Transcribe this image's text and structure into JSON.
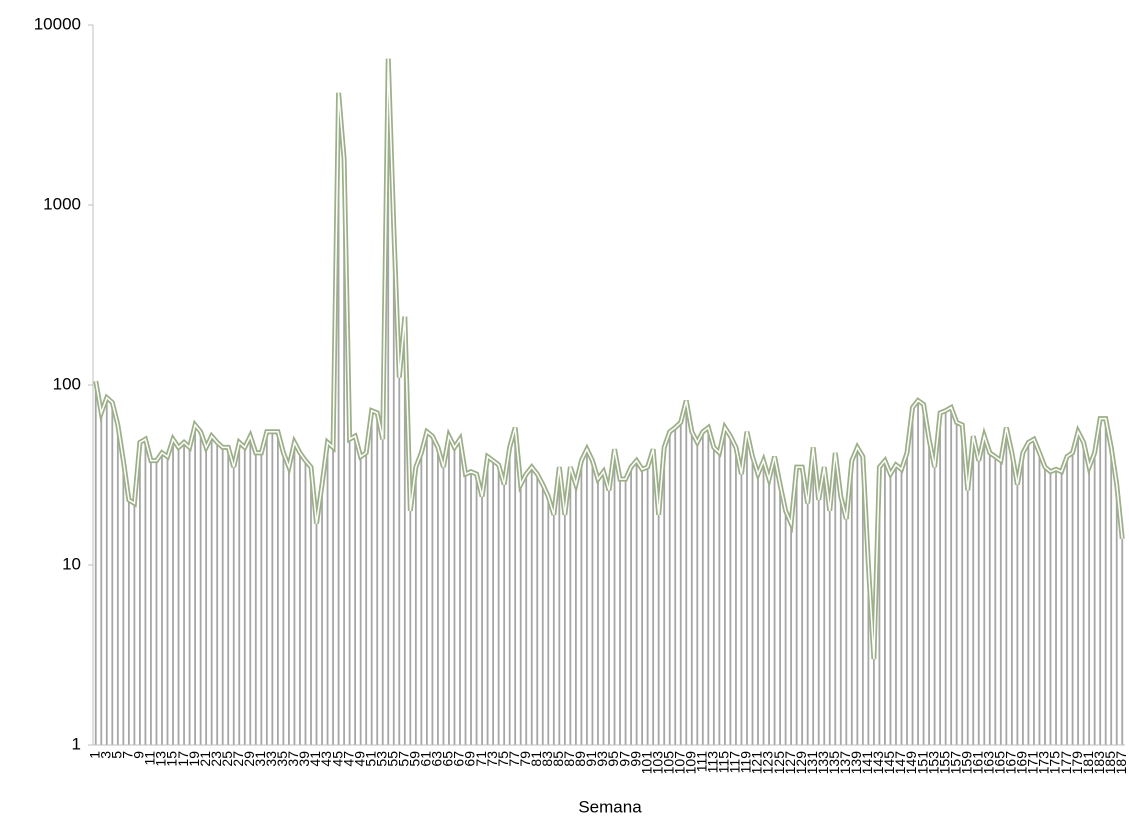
{
  "chart_data": {
    "type": "bar",
    "x_label": "Semana",
    "categories": [
      "1",
      null,
      "3",
      null,
      "5",
      null,
      "7",
      null,
      "9",
      null,
      "11",
      null,
      "13",
      null,
      "15",
      null,
      "17",
      null,
      "19",
      null,
      "21",
      null,
      "23",
      null,
      "25",
      null,
      "27",
      null,
      "29",
      null,
      "31",
      null,
      "33",
      null,
      "35",
      null,
      "37",
      null,
      "39",
      null,
      "41",
      null,
      "43",
      null,
      "45",
      null,
      "47",
      null,
      "49",
      null,
      "51",
      null,
      "53",
      null,
      "55",
      null,
      "57",
      null,
      "59",
      null,
      "61",
      null,
      "63",
      null,
      "65",
      null,
      "67",
      null,
      "69",
      null,
      "71",
      null,
      "73",
      null,
      "75",
      null,
      "77",
      null,
      "79",
      null,
      "81",
      null,
      "83",
      null,
      "85",
      null,
      "87",
      null,
      "89",
      null,
      "91",
      null,
      "93",
      null,
      "95",
      null,
      "97",
      null,
      "99",
      null,
      "101",
      null,
      "103",
      null,
      "105",
      null,
      "107",
      null,
      "109",
      null,
      "111",
      null,
      "113",
      null,
      "115",
      null,
      "117",
      null,
      "119",
      null,
      "121",
      null,
      "123",
      null,
      "125",
      null,
      "127",
      null,
      "129",
      null,
      "131",
      null,
      "133",
      null,
      "135",
      null,
      "137",
      null,
      "139",
      null,
      "141",
      null,
      "143",
      null,
      "145",
      null,
      "147",
      null,
      "149",
      null,
      "151",
      null,
      "153",
      null,
      "155",
      null,
      "157",
      null,
      "159",
      null,
      "161",
      null,
      "163",
      null,
      "165",
      null,
      "167",
      null,
      "169",
      null,
      "171",
      null,
      "173",
      null,
      "175",
      null,
      "177",
      null,
      "179",
      null,
      "181",
      null,
      "183",
      null,
      "185",
      null,
      "187"
    ],
    "values": [
      105,
      70,
      85,
      80,
      60,
      38,
      23,
      22,
      48,
      50,
      38,
      38,
      42,
      40,
      50,
      45,
      48,
      45,
      60,
      55,
      45,
      52,
      48,
      45,
      45,
      35,
      48,
      45,
      52,
      42,
      42,
      55,
      55,
      55,
      42,
      35,
      48,
      42,
      38,
      35,
      17,
      28,
      48,
      45,
      4200,
      1800,
      50,
      52,
      40,
      42,
      72,
      70,
      50,
      6500,
      750,
      110,
      240,
      20,
      35,
      42,
      55,
      52,
      45,
      35,
      52,
      45,
      50,
      32,
      33,
      32,
      24,
      40,
      38,
      36,
      28,
      45,
      58,
      28,
      32,
      35,
      32,
      28,
      24,
      19,
      35,
      19,
      35,
      28,
      38,
      44,
      38,
      30,
      33,
      26,
      44,
      30,
      30,
      35,
      38,
      34,
      35,
      44,
      19,
      45,
      55,
      58,
      62,
      82,
      55,
      48,
      55,
      58,
      45,
      42,
      58,
      52,
      45,
      32,
      55,
      40,
      32,
      38,
      30,
      40,
      28,
      20,
      17,
      35,
      35,
      22,
      45,
      23,
      35,
      20,
      42,
      24,
      18,
      38,
      45,
      40,
      10,
      3,
      35,
      38,
      32,
      36,
      34,
      42,
      75,
      82,
      78,
      50,
      35,
      70,
      72,
      75,
      62,
      60,
      26,
      52,
      38,
      52,
      42,
      40,
      38,
      58,
      42,
      28,
      42,
      48,
      50,
      42,
      35,
      33,
      34,
      33,
      40,
      42,
      55,
      48,
      35,
      42,
      65,
      65,
      45,
      28,
      14
    ],
    "color": "#a6a6a6",
    "line_color": "#9caf88",
    "ylim": [
      1,
      10000
    ],
    "yticks": [
      1,
      10,
      100,
      1000,
      10000
    ],
    "log_scale": true
  }
}
